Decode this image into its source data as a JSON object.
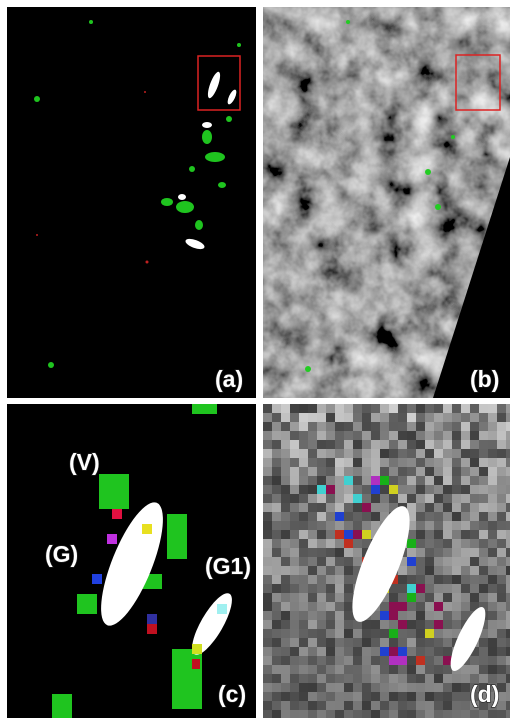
{
  "panels": [
    {
      "label": "(a)"
    },
    {
      "label": "(b)"
    },
    {
      "label": "(c)",
      "annotations": [
        "(V)",
        "(G)",
        "(G1)"
      ]
    },
    {
      "label": "(d)"
    }
  ]
}
